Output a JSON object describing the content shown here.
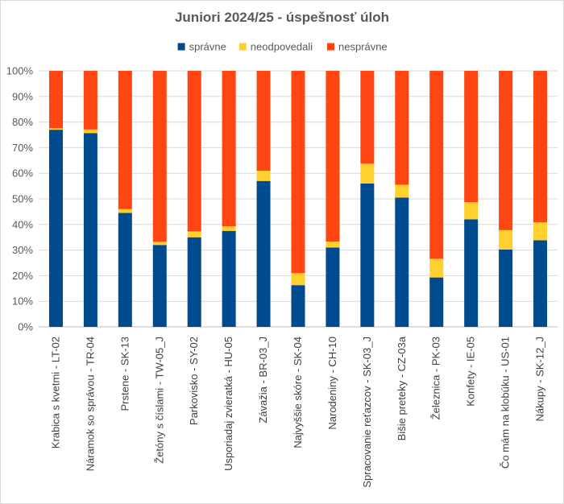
{
  "chart_data": {
    "type": "stacked-bar-100",
    "title": "Juniori 2024/25 - úspešnosť úloh",
    "legend_position": "top",
    "ylim": [
      0,
      100
    ],
    "yticks": [
      "0%",
      "10%",
      "20%",
      "30%",
      "40%",
      "50%",
      "60%",
      "70%",
      "80%",
      "90%",
      "100%"
    ],
    "categories": [
      "Krabica s kvetmi - LT-02",
      "Náramok so správou - TR-04",
      "Prstene - SK-13",
      "Žetóny s číslami - TW-05_J",
      "Parkovisko - SY-02",
      "Usporiadaj zvieratká - HU-05",
      "Závažia - BR-03_J",
      "Najvyššie skóre - SK-04",
      "Narodeniny - CH-10",
      "Spracovanie reťazcov - SK-03_J",
      "Bišie preteky - CZ-03a",
      "Železnica - PK-03",
      "Konfety - IE-05",
      "Čo mám na klobúku - US-01",
      "Nákupy - SK-12_J"
    ],
    "series": [
      {
        "name": "správne",
        "color": "#004a8f",
        "values": [
          77,
          75.7,
          44.5,
          32,
          35,
          37.5,
          57,
          16.3,
          31,
          56,
          50.5,
          19.3,
          42,
          30.2,
          33.8
        ]
      },
      {
        "name": "neodpovedali",
        "color": "#ffd02e",
        "values": [
          0.6,
          1.4,
          1.5,
          1.2,
          2.3,
          1.8,
          4,
          4.7,
          2.3,
          7.8,
          5,
          7.3,
          6.7,
          7.6,
          7
        ]
      },
      {
        "name": "nesprávne",
        "color": "#ff4511",
        "values": [
          22.4,
          22.9,
          54,
          66.8,
          62.7,
          60.7,
          39,
          79,
          66.7,
          36.2,
          44.5,
          73.4,
          51.3,
          62.2,
          59.2
        ]
      }
    ]
  }
}
